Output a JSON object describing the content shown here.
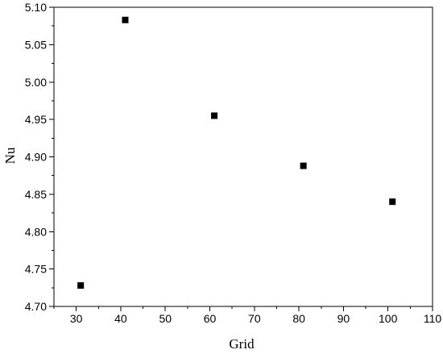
{
  "chart_data": {
    "type": "scatter",
    "xlabel": "Grid",
    "ylabel": "Nu",
    "xlim": [
      25,
      110
    ],
    "ylim": [
      4.7,
      5.1
    ],
    "x_ticks": [
      30,
      40,
      50,
      60,
      70,
      80,
      90,
      100,
      110
    ],
    "y_ticks": [
      "4.70",
      "4.75",
      "4.80",
      "4.85",
      "4.90",
      "4.95",
      "5.00",
      "5.05",
      "5.10"
    ],
    "grid": false,
    "marker": "square",
    "marker_color": "#000000",
    "points": [
      {
        "x": 31,
        "y": 4.728
      },
      {
        "x": 41,
        "y": 5.083
      },
      {
        "x": 61,
        "y": 4.955
      },
      {
        "x": 81,
        "y": 4.888
      },
      {
        "x": 101,
        "y": 4.84
      }
    ]
  }
}
